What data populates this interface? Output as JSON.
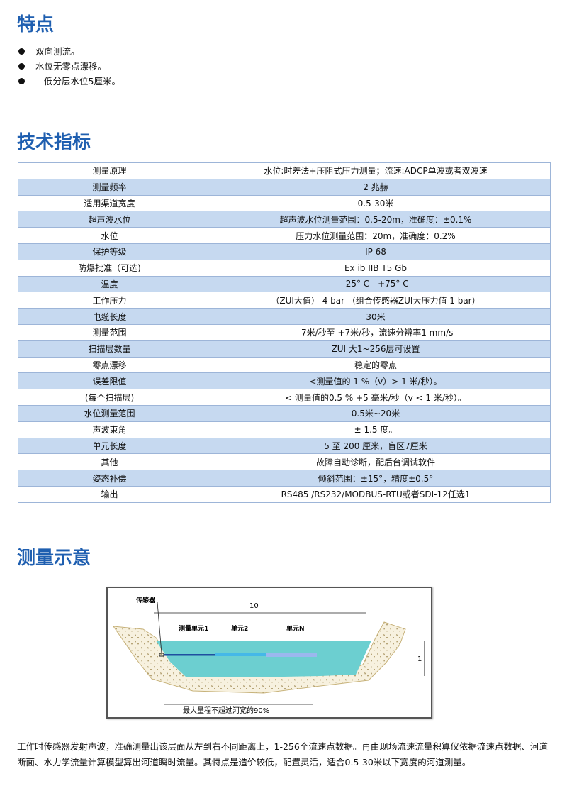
{
  "features": {
    "title": "特点",
    "items": [
      "双向测流。",
      "水位无零点漂移。",
      "低分层水位5厘米。"
    ]
  },
  "specs": {
    "title": "技术指标",
    "rows": [
      [
        "测量原理",
        "水位:时差法+压阻式压力测量；流速:ADCP单波或者双波速"
      ],
      [
        "测量频率",
        "2 兆赫"
      ],
      [
        "适用渠道宽度",
        "0.5-30米"
      ],
      [
        "超声波水位",
        "超声波水位测量范围：0.5-20m，准确度：±0.1%"
      ],
      [
        "水位",
        "压力水位测量范围：20m，准确度：0.2%"
      ],
      [
        "保护等级",
        "IP 68"
      ],
      [
        "防爆批准（可选)",
        "Ex ib IIB T5 Gb"
      ],
      [
        "温度",
        "-25° C - +75° C"
      ],
      [
        "工作压力",
        "（ZUI大值） 4 bar （组合传感器ZUI大压力值 1  bar）"
      ],
      [
        "电缆长度",
        "30米"
      ],
      [
        "测量范围",
        "-7米/秒至 +7米/秒，流速分辨率1 mm/s"
      ],
      [
        "扫描层数量",
        "ZUI 大1~256层可设置"
      ],
      [
        "零点漂移",
        "稳定的零点"
      ],
      [
        "误差限值",
        "<测量值的 1 %（v）> 1 米/秒）。"
      ],
      [
        "(每个扫描层)",
        "< 测量值的0.5 % +5 毫米/秒（v < 1 米/秒）。"
      ],
      [
        "水位测量范围",
        "0.5米~20米"
      ],
      [
        "声波束角",
        "± 1.5 度。"
      ],
      [
        "单元长度",
        "5 至 200 厘米，盲区7厘米"
      ],
      [
        "其他",
        "故障自动诊断，配后台调试软件"
      ],
      [
        "姿态补偿",
        "倾斜范围：±15°，精度±0.5°"
      ],
      [
        "输出",
        "RS485 /RS232/MODBUS-RTU或者SDI-12任选1"
      ]
    ]
  },
  "diagram": {
    "title": "测量示意",
    "sensor": "传感器",
    "width_label": "10",
    "cell1": "测量单元1",
    "cell2": "单元2",
    "cellN": "单元N",
    "depth_label": "1",
    "range_note": "最大量程不超过河宽的90%",
    "colors": {
      "water": "#6ccfd0",
      "soil": "#f7f1df",
      "beam1": "#1f4fa0",
      "beam2": "#45b8e8",
      "beamN": "#9bb8ee"
    }
  },
  "description": "工作时传感器发射声波，准确测量出该层面从左到右不同距离上，1-256个流速点数据。再由现场流速流量积算仪依据流速点数据、河道断面、水力学流量计算模型算出河道瞬时流量。其特点是造价较低，配置灵活，适合0.5-30米以下宽度的河道测量。"
}
